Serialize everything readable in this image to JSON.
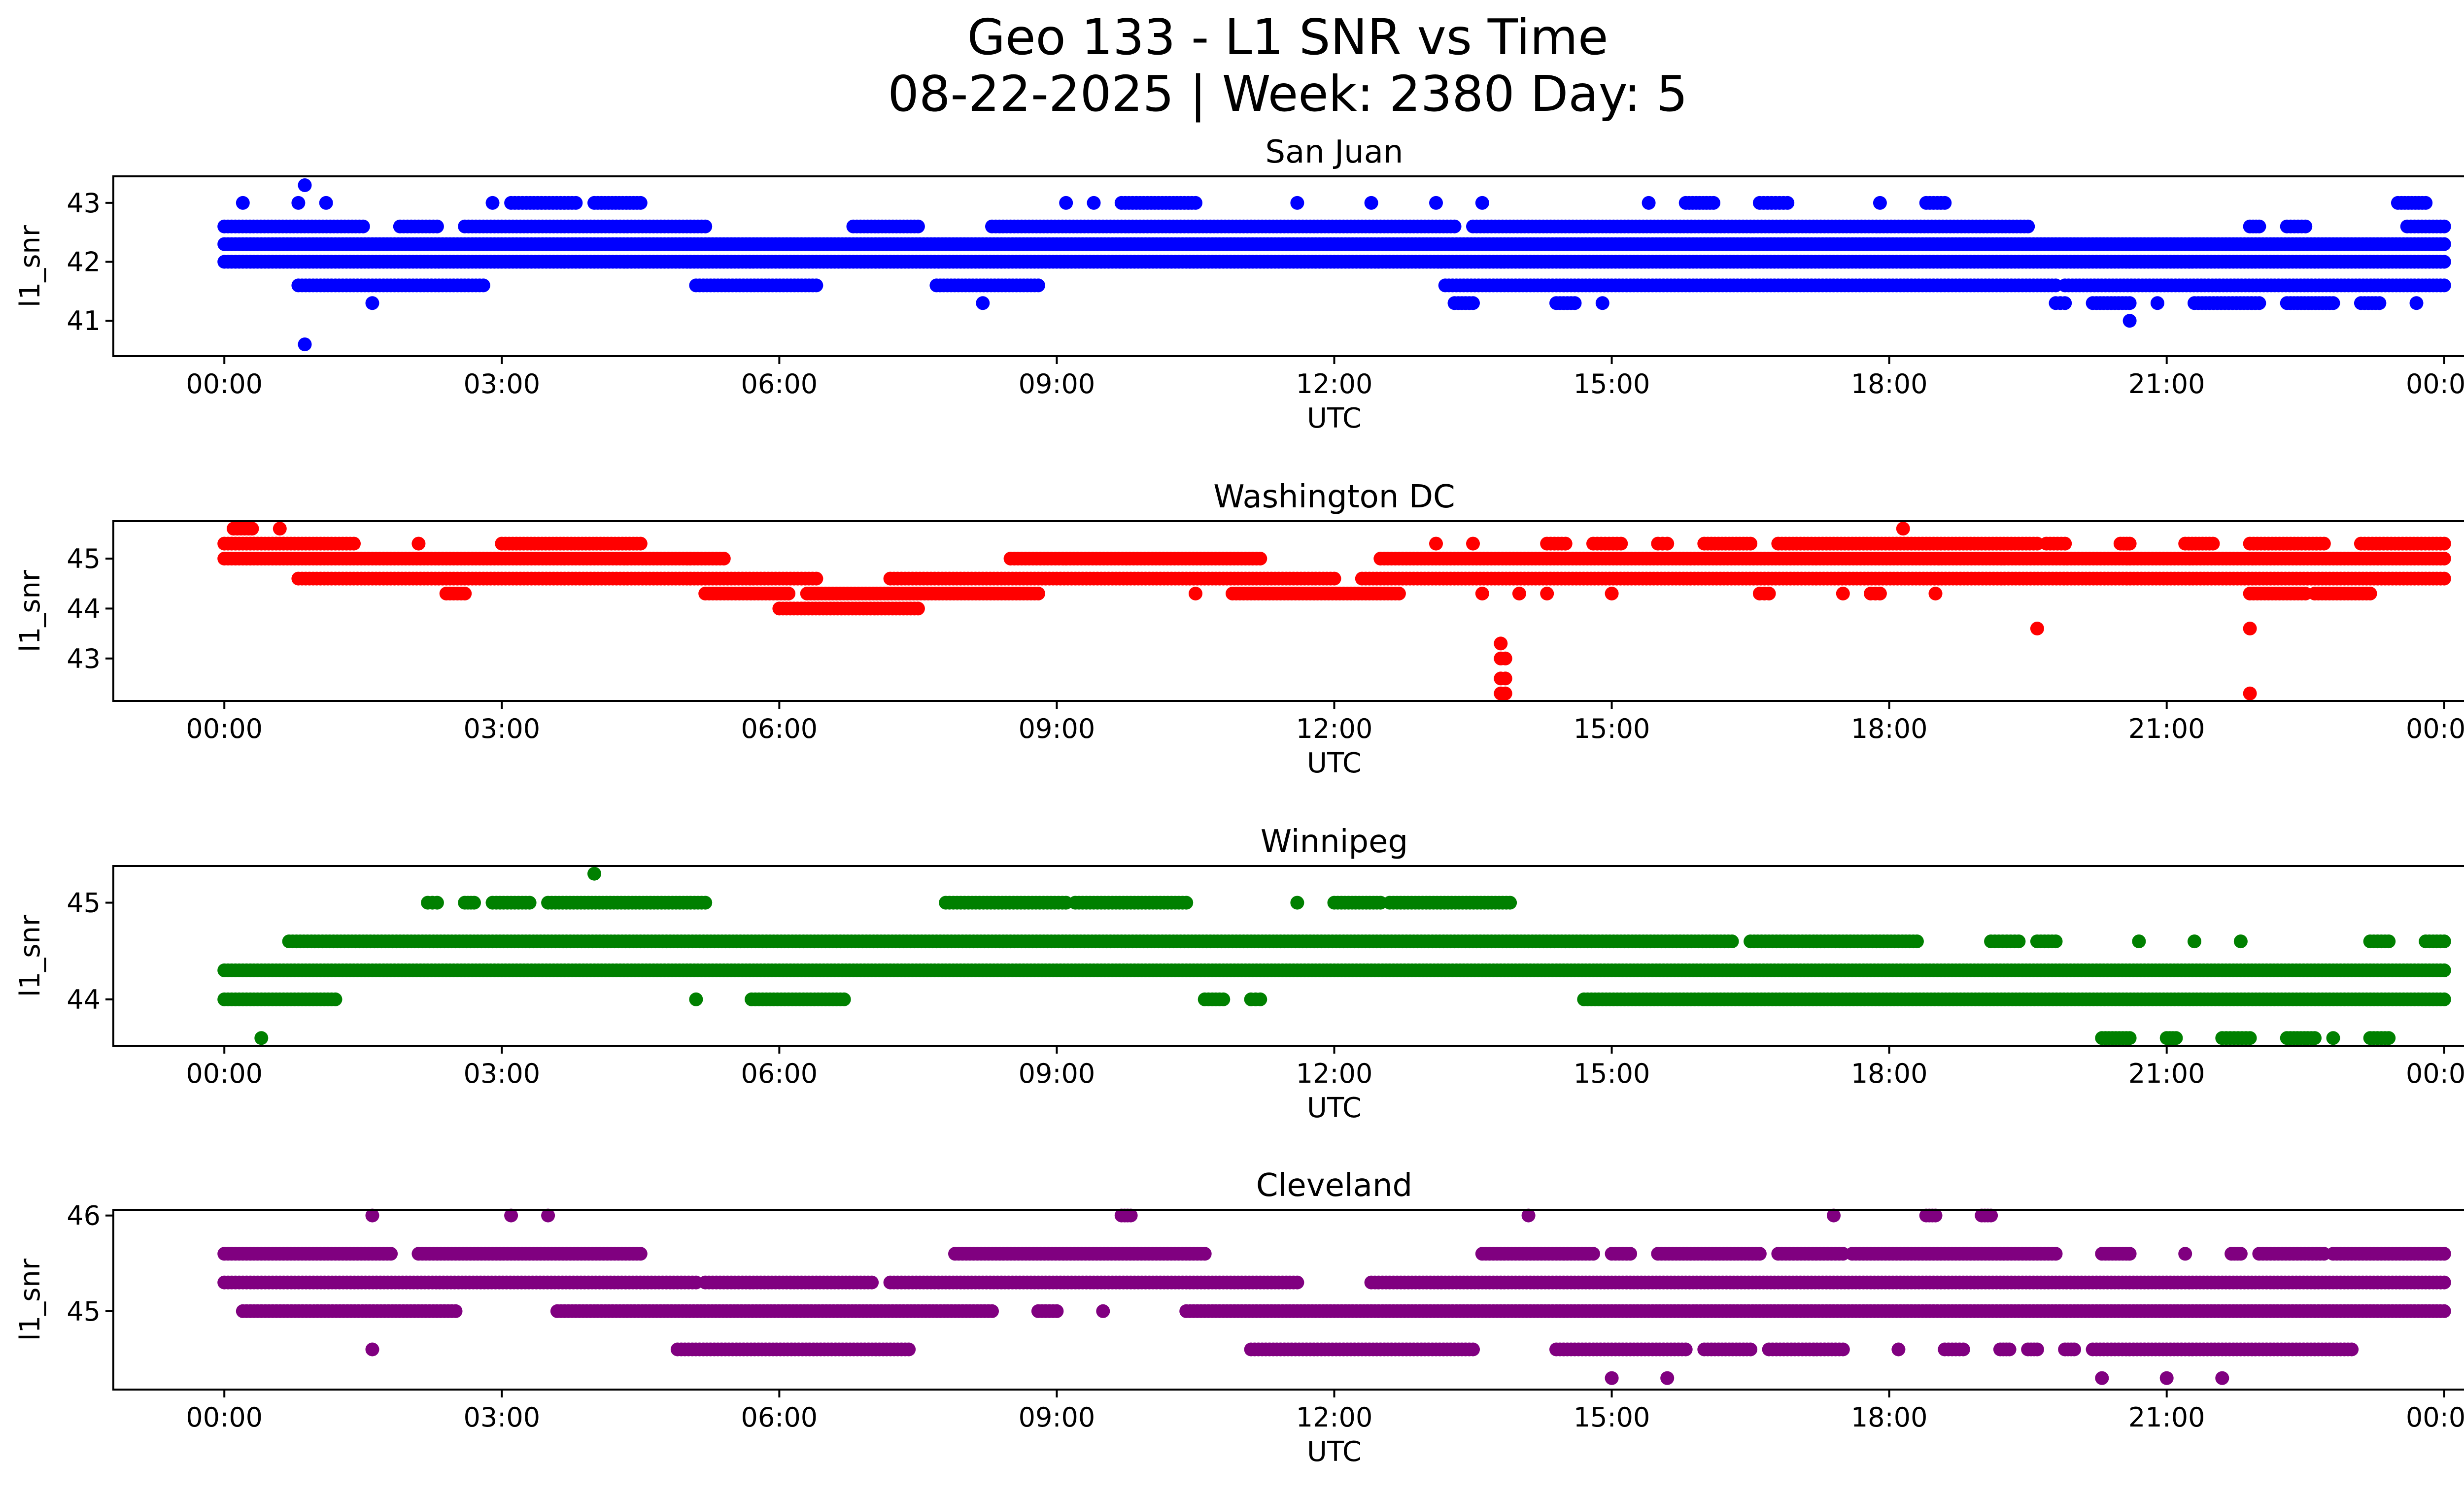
{
  "figure": {
    "title_line1": "Geo 133 - L1 SNR vs Time",
    "title_line2": "08-22-2025 | Week: 2380 Day: 5"
  },
  "chart_data": [
    {
      "type": "scatter",
      "title": "San Juan",
      "xlabel": "UTC",
      "ylabel": "l1_snr",
      "color": "#0000ff",
      "xlim_hours": [
        -1.2,
        25.2
      ],
      "ylim": [
        40.4,
        43.45
      ],
      "yticks": [
        41,
        42,
        43
      ],
      "xticks": [
        "00:00",
        "03:00",
        "06:00",
        "09:00",
        "12:00",
        "15:00",
        "18:00",
        "21:00",
        "00:00"
      ],
      "series": [
        {
          "name": "l1_snr @ 42.3",
          "y": 42.3,
          "segments": [
            [
              0.0,
              24.0
            ]
          ]
        },
        {
          "name": "l1_snr @ 42.0",
          "y": 42.0,
          "segments": [
            [
              0.0,
              24.0
            ]
          ]
        },
        {
          "name": "l1_snr @ 42.6",
          "y": 42.6,
          "segments": [
            [
              0.0,
              1.5
            ],
            [
              1.9,
              2.3
            ],
            [
              2.6,
              5.2
            ],
            [
              6.8,
              7.5
            ],
            [
              8.3,
              13.3
            ],
            [
              13.5,
              19.5
            ],
            [
              21.9,
              22.0
            ],
            [
              22.3,
              22.5
            ],
            [
              23.6,
              24.0
            ]
          ]
        },
        {
          "name": "l1_snr @ 41.6",
          "y": 41.6,
          "segments": [
            [
              0.8,
              2.8
            ],
            [
              5.1,
              6.4
            ],
            [
              7.7,
              8.8
            ],
            [
              13.2,
              19.8
            ],
            [
              19.9,
              24.0
            ]
          ]
        },
        {
          "name": "l1_snr @ 43.0",
          "y": 43.0,
          "segments": [
            [
              0.2,
              0.2
            ],
            [
              0.8,
              0.8
            ],
            [
              1.1,
              1.1
            ],
            [
              2.9,
              2.9
            ],
            [
              3.1,
              3.8
            ],
            [
              4.0,
              4.5
            ],
            [
              9.1,
              9.1
            ],
            [
              9.4,
              9.4
            ],
            [
              9.7,
              10.5
            ],
            [
              11.6,
              11.6
            ],
            [
              12.4,
              12.4
            ],
            [
              13.1,
              13.1
            ],
            [
              13.6,
              13.6
            ],
            [
              15.4,
              15.4
            ],
            [
              15.8,
              16.1
            ],
            [
              16.6,
              16.9
            ],
            [
              17.9,
              17.9
            ],
            [
              18.4,
              18.6
            ],
            [
              23.5,
              23.8
            ]
          ]
        },
        {
          "name": "l1_snr @ 41.3",
          "y": 41.3,
          "segments": [
            [
              1.6,
              1.6
            ],
            [
              8.2,
              8.2
            ],
            [
              13.3,
              13.5
            ],
            [
              14.4,
              14.6
            ],
            [
              14.9,
              14.9
            ],
            [
              19.8,
              19.9
            ],
            [
              20.2,
              20.6
            ],
            [
              20.9,
              20.9
            ],
            [
              21.3,
              22.0
            ],
            [
              22.3,
              22.8
            ],
            [
              23.1,
              23.3
            ],
            [
              23.7,
              23.7
            ]
          ]
        },
        {
          "name": "l1_snr @ 43.3",
          "y": 43.3,
          "segments": [
            [
              0.87,
              0.87
            ]
          ]
        },
        {
          "name": "l1_snr @ 41.0",
          "y": 41.0,
          "segments": [
            [
              20.6,
              20.6
            ]
          ]
        },
        {
          "name": "l1_snr @ 40.6",
          "y": 40.6,
          "segments": [
            [
              0.87,
              0.87
            ]
          ]
        }
      ]
    },
    {
      "type": "scatter",
      "title": "Washington DC",
      "xlabel": "UTC",
      "ylabel": "l1_snr",
      "color": "#ff0000",
      "xlim_hours": [
        -1.2,
        25.2
      ],
      "ylim": [
        42.15,
        45.75
      ],
      "yticks": [
        43,
        44,
        45
      ],
      "xticks": [
        "00:00",
        "03:00",
        "06:00",
        "09:00",
        "12:00",
        "15:00",
        "18:00",
        "21:00",
        "00:00"
      ],
      "series": [
        {
          "name": "l1_snr @ 45.0",
          "y": 45.0,
          "segments": [
            [
              0.0,
              5.4
            ],
            [
              8.5,
              11.2
            ],
            [
              12.5,
              24.0
            ]
          ]
        },
        {
          "name": "l1_snr @ 44.6",
          "y": 44.6,
          "segments": [
            [
              0.8,
              6.4
            ],
            [
              7.2,
              12.0
            ],
            [
              12.3,
              24.0
            ]
          ]
        },
        {
          "name": "l1_snr @ 45.3",
          "y": 45.3,
          "segments": [
            [
              0.0,
              1.4
            ],
            [
              2.1,
              2.1
            ],
            [
              3.0,
              4.5
            ],
            [
              13.1,
              13.1
            ],
            [
              13.5,
              13.5
            ],
            [
              14.3,
              14.5
            ],
            [
              14.8,
              15.1
            ],
            [
              15.5,
              15.6
            ],
            [
              16.0,
              16.5
            ],
            [
              16.8,
              19.6
            ],
            [
              19.7,
              19.9
            ],
            [
              20.5,
              20.6
            ],
            [
              21.2,
              21.5
            ],
            [
              21.9,
              22.7
            ],
            [
              23.1,
              24.0
            ]
          ]
        },
        {
          "name": "l1_snr @ 44.3",
          "y": 44.3,
          "segments": [
            [
              2.4,
              2.6
            ],
            [
              5.2,
              6.1
            ],
            [
              6.3,
              8.8
            ],
            [
              10.5,
              10.5
            ],
            [
              10.9,
              12.7
            ],
            [
              13.6,
              13.6
            ],
            [
              14.0,
              14.0
            ],
            [
              14.3,
              14.3
            ],
            [
              15.0,
              15.0
            ],
            [
              16.6,
              16.7
            ],
            [
              17.5,
              17.5
            ],
            [
              17.8,
              17.9
            ],
            [
              18.5,
              18.5
            ],
            [
              21.9,
              22.5
            ],
            [
              22.6,
              23.2
            ]
          ]
        },
        {
          "name": "l1_snr @ 44.0",
          "y": 44.0,
          "segments": [
            [
              6.0,
              7.5
            ]
          ]
        },
        {
          "name": "l1_snr @ 45.6",
          "y": 45.6,
          "segments": [
            [
              0.1,
              0.3
            ],
            [
              0.6,
              0.6
            ],
            [
              18.15,
              18.15
            ]
          ]
        },
        {
          "name": "l1_snr @ 43.6",
          "y": 43.6,
          "segments": [
            [
              19.6,
              19.6
            ],
            [
              21.9,
              21.9
            ]
          ]
        },
        {
          "name": "l1_snr @ 43.3",
          "y": 43.3,
          "segments": [
            [
              13.8,
              13.8
            ]
          ]
        },
        {
          "name": "l1_snr @ 43.0",
          "y": 43.0,
          "segments": [
            [
              13.8,
              13.85
            ]
          ]
        },
        {
          "name": "l1_snr @ 42.6",
          "y": 42.6,
          "segments": [
            [
              13.8,
              13.85
            ]
          ]
        },
        {
          "name": "l1_snr @ 42.3",
          "y": 42.3,
          "segments": [
            [
              13.8,
              13.85
            ],
            [
              21.9,
              21.9
            ]
          ]
        }
      ]
    },
    {
      "type": "scatter",
      "title": "Winnipeg",
      "xlabel": "UTC",
      "ylabel": "l1_snr",
      "color": "#008000",
      "xlim_hours": [
        -1.2,
        25.2
      ],
      "ylim": [
        43.52,
        45.38
      ],
      "yticks": [
        44,
        45
      ],
      "xticks": [
        "00:00",
        "03:00",
        "06:00",
        "09:00",
        "12:00",
        "15:00",
        "18:00",
        "21:00",
        "00:00"
      ],
      "series": [
        {
          "name": "l1_snr @ 44.3",
          "y": 44.3,
          "segments": [
            [
              0.0,
              24.0
            ]
          ]
        },
        {
          "name": "l1_snr @ 44.6",
          "y": 44.6,
          "segments": [
            [
              0.7,
              16.3
            ],
            [
              16.5,
              18.3
            ],
            [
              19.1,
              19.4
            ],
            [
              19.6,
              19.8
            ],
            [
              20.7,
              20.7
            ],
            [
              21.3,
              21.3
            ],
            [
              21.8,
              21.8
            ],
            [
              23.2,
              23.4
            ],
            [
              23.8,
              24.0
            ]
          ]
        },
        {
          "name": "l1_snr @ 44.0",
          "y": 44.0,
          "segments": [
            [
              0.0,
              1.2
            ],
            [
              5.1,
              5.1
            ],
            [
              5.7,
              6.7
            ],
            [
              10.6,
              10.8
            ],
            [
              11.1,
              11.2
            ],
            [
              14.7,
              24.0
            ]
          ]
        },
        {
          "name": "l1_snr @ 45.0",
          "y": 45.0,
          "segments": [
            [
              2.2,
              2.3
            ],
            [
              2.6,
              2.7
            ],
            [
              2.9,
              3.3
            ],
            [
              3.5,
              5.2
            ],
            [
              7.8,
              9.1
            ],
            [
              9.2,
              10.4
            ],
            [
              11.6,
              11.6
            ],
            [
              12.0,
              12.5
            ],
            [
              12.6,
              13.9
            ]
          ]
        },
        {
          "name": "l1_snr @ 43.6",
          "y": 43.6,
          "segments": [
            [
              0.4,
              0.4
            ],
            [
              20.3,
              20.6
            ],
            [
              21.0,
              21.1
            ],
            [
              21.6,
              21.9
            ],
            [
              22.3,
              22.6
            ],
            [
              22.8,
              22.8
            ],
            [
              23.2,
              23.4
            ]
          ]
        },
        {
          "name": "l1_snr @ 45.3",
          "y": 45.3,
          "segments": [
            [
              4.0,
              4.0
            ]
          ]
        }
      ]
    },
    {
      "type": "scatter",
      "title": "Cleveland",
      "xlabel": "UTC",
      "ylabel": "l1_snr",
      "color": "#800080",
      "xlim_hours": [
        -1.2,
        25.2
      ],
      "ylim": [
        44.18,
        46.06
      ],
      "yticks": [
        45,
        46
      ],
      "xticks": [
        "00:00",
        "03:00",
        "06:00",
        "09:00",
        "12:00",
        "15:00",
        "18:00",
        "21:00",
        "00:00"
      ],
      "series": [
        {
          "name": "l1_snr @ 45.3",
          "y": 45.3,
          "segments": [
            [
              0.0,
              5.1
            ],
            [
              5.2,
              7.0
            ],
            [
              7.2,
              11.6
            ],
            [
              12.4,
              24.0
            ]
          ]
        },
        {
          "name": "l1_snr @ 45.0",
          "y": 45.0,
          "segments": [
            [
              0.2,
              2.5
            ],
            [
              3.6,
              8.3
            ],
            [
              8.8,
              9.0
            ],
            [
              9.5,
              9.5
            ],
            [
              10.4,
              24.0
            ]
          ]
        },
        {
          "name": "l1_snr @ 45.6",
          "y": 45.6,
          "segments": [
            [
              0.0,
              1.8
            ],
            [
              2.1,
              4.5
            ],
            [
              7.9,
              10.6
            ],
            [
              13.6,
              14.8
            ],
            [
              15.0,
              15.2
            ],
            [
              15.5,
              16.6
            ],
            [
              16.8,
              17.5
            ],
            [
              17.6,
              19.8
            ],
            [
              20.3,
              20.6
            ],
            [
              21.2,
              21.2
            ],
            [
              21.7,
              21.8
            ],
            [
              22.0,
              22.7
            ],
            [
              22.8,
              24.0
            ]
          ]
        },
        {
          "name": "l1_snr @ 44.6",
          "y": 44.6,
          "segments": [
            [
              1.6,
              1.6
            ],
            [
              4.9,
              7.4
            ],
            [
              11.1,
              13.5
            ],
            [
              14.4,
              15.8
            ],
            [
              16.0,
              16.5
            ],
            [
              16.7,
              17.5
            ],
            [
              18.1,
              18.1
            ],
            [
              18.6,
              18.8
            ],
            [
              19.2,
              19.3
            ],
            [
              19.5,
              19.6
            ],
            [
              19.9,
              20.0
            ],
            [
              20.2,
              23.0
            ]
          ]
        },
        {
          "name": "l1_snr @ 46.0",
          "y": 46.0,
          "segments": [
            [
              1.6,
              1.6
            ],
            [
              3.1,
              3.1
            ],
            [
              3.5,
              3.5
            ],
            [
              9.7,
              9.8
            ],
            [
              14.1,
              14.1
            ],
            [
              17.4,
              17.4
            ],
            [
              18.4,
              18.5
            ],
            [
              19.0,
              19.1
            ]
          ]
        },
        {
          "name": "l1_snr @ 44.3",
          "y": 44.3,
          "segments": [
            [
              15.0,
              15.0
            ],
            [
              15.6,
              15.6
            ],
            [
              20.3,
              20.3
            ],
            [
              21.0,
              21.0
            ],
            [
              21.6,
              21.6
            ]
          ]
        }
      ]
    }
  ]
}
